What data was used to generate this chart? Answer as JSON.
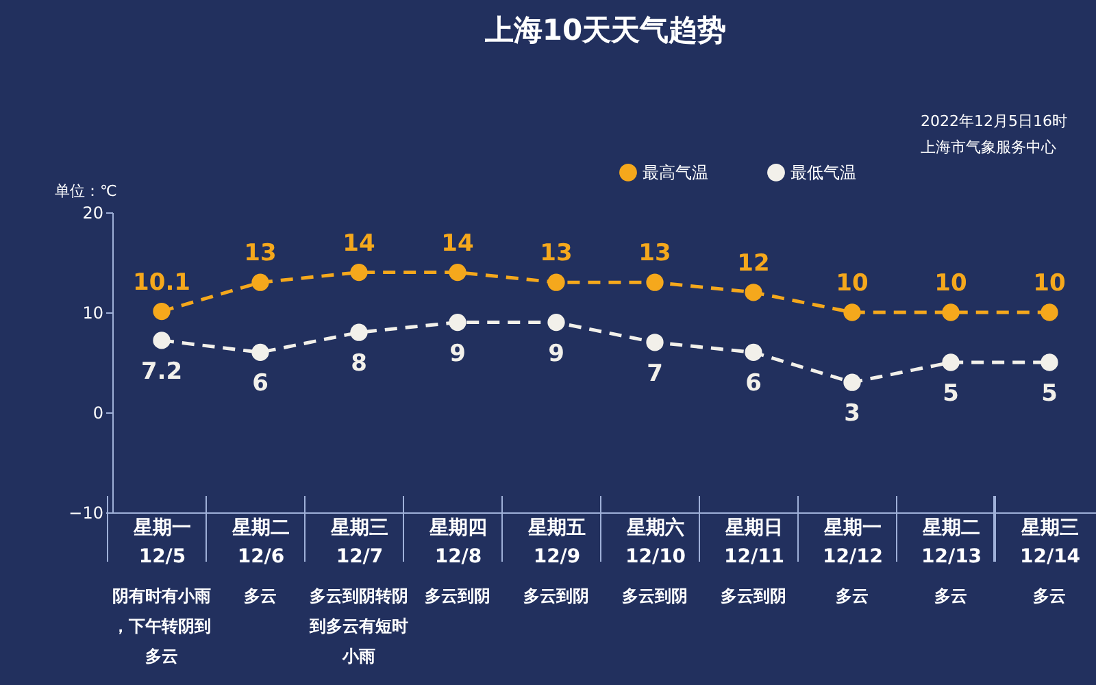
{
  "chart_data": {
    "type": "line",
    "title": "上海10天天气趋势",
    "ylabel": "单位：℃",
    "categories": [
      "星期一\n12/5",
      "星期二\n12/6",
      "星期三\n12/7",
      "星期四\n12/8",
      "星期五\n12/9",
      "星期六\n12/10",
      "星期日\n12/11",
      "星期一\n12/12",
      "星期二\n12/13",
      "星期三\n12/14"
    ],
    "series": [
      {
        "name": "最高气温",
        "color": "#f5a81c",
        "values": [
          10.1,
          13,
          14,
          14,
          13,
          13,
          12,
          10,
          10,
          10
        ]
      },
      {
        "name": "最低气温",
        "color": "#f2f0ea",
        "values": [
          7.2,
          6,
          8,
          9,
          9,
          7,
          6,
          3,
          5,
          5
        ]
      }
    ],
    "ylim": [
      -10,
      20
    ],
    "yticks": [
      -10,
      0,
      10,
      20
    ],
    "grid": false,
    "legend": "top right",
    "marker": "circle",
    "line_style": "dashed",
    "data_labels": true,
    "annotations": [
      "2022年12月5日16时",
      "上海市气象服务中心",
      "阴有时有小雨，下午转阴到多云",
      "多云",
      "多云到阴转阴到多云有短时小雨",
      "多云到阴",
      "多云到阴",
      "多云到阴",
      "多云到阴",
      "多云",
      "多云",
      "多云"
    ]
  }
}
